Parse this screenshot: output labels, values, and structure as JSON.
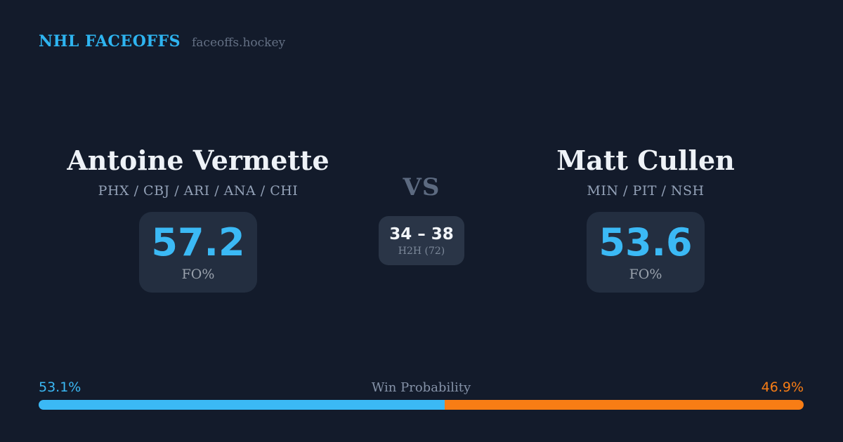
{
  "header": {
    "brand": "NHL FACEOFFS",
    "site": "faceoffs.hockey"
  },
  "matchup": {
    "vs_label": "VS",
    "h2h": {
      "score": "34 – 38",
      "sample_label": "H2H (72)"
    },
    "players": [
      {
        "name": "Antoine Vermette",
        "teams": "PHX / CBJ / ARI / ANA / CHI",
        "stat_value": "57.2",
        "stat_label": "FO%"
      },
      {
        "name": "Matt Cullen",
        "teams": "MIN / PIT / NSH",
        "stat_value": "53.6",
        "stat_label": "FO%"
      }
    ]
  },
  "win_probability": {
    "label": "Win Probability",
    "left_pct_label": "53.1%",
    "right_pct_label": "46.9%",
    "left_value": 53.1,
    "right_value": 46.9
  },
  "colors": {
    "background": "#131b2b",
    "card": "#232e40",
    "center_card": "#2a3547",
    "accent_blue": "#3bb9f5",
    "accent_orange": "#f87d15",
    "text_white": "#eef2f7",
    "text_slate": "#8592a8"
  },
  "chart_data": {
    "type": "bar",
    "title": "Win Probability",
    "categories": [
      "Antoine Vermette",
      "Matt Cullen"
    ],
    "values": [
      53.1,
      46.9
    ],
    "xlabel": "",
    "ylabel": "",
    "xlim": [
      0,
      100
    ],
    "legend_position": "none",
    "grid": false,
    "orientation": "horizontal-stacked",
    "extra_metrics": {
      "faceoff_pct": {
        "Antoine Vermette": 57.2,
        "Matt Cullen": 53.6
      },
      "head_to_head_wins": {
        "Antoine Vermette": 34,
        "Matt Cullen": 38,
        "total_faceoffs": 72
      }
    }
  }
}
